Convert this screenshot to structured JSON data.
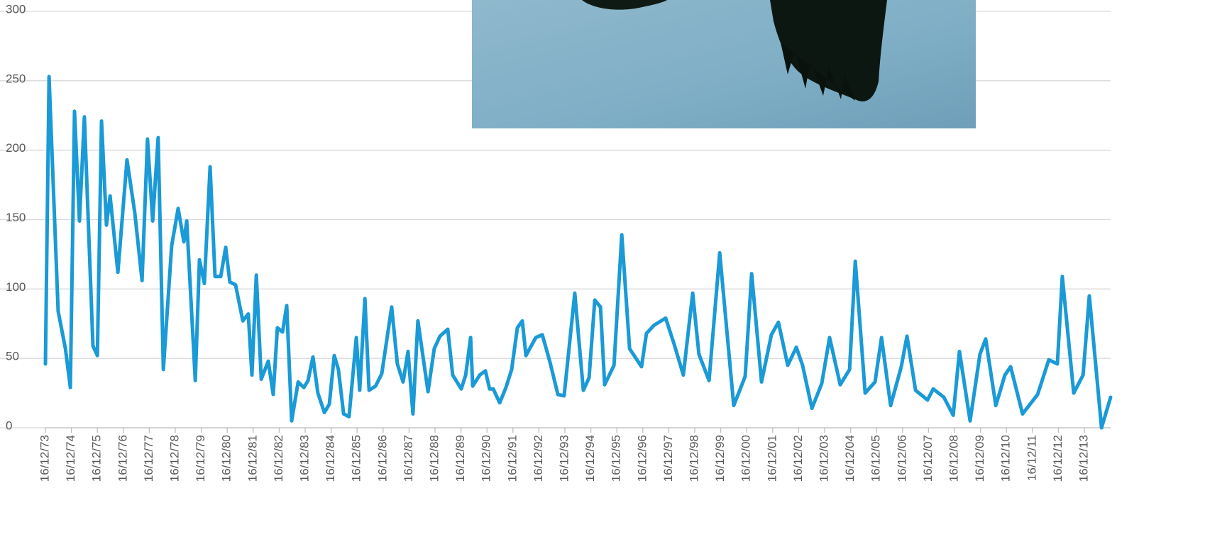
{
  "chart_data": {
    "type": "line",
    "x": [
      1973.96,
      1974.1,
      1974.45,
      1974.73,
      1974.92,
      1975.08,
      1975.27,
      1975.46,
      1975.79,
      1975.96,
      1976.12,
      1976.31,
      1976.45,
      1976.75,
      1977.1,
      1977.4,
      1977.68,
      1977.89,
      1978.09,
      1978.3,
      1978.5,
      1978.82,
      1979.07,
      1979.29,
      1979.4,
      1979.73,
      1979.89,
      1980.08,
      1980.3,
      1980.49,
      1980.71,
      1980.9,
      1981.06,
      1981.28,
      1981.56,
      1981.77,
      1981.91,
      1982.08,
      1982.27,
      1982.54,
      1982.73,
      1982.89,
      1983.09,
      1983.25,
      1983.44,
      1983.69,
      1983.91,
      1984.07,
      1984.26,
      1984.45,
      1984.7,
      1984.89,
      1985.08,
      1985.24,
      1985.44,
      1985.65,
      1985.93,
      1986.06,
      1986.26,
      1986.42,
      1986.67,
      1986.91,
      1987.29,
      1987.51,
      1987.73,
      1987.92,
      1988.11,
      1988.3,
      1988.69,
      1988.93,
      1989.15,
      1989.45,
      1989.64,
      1989.97,
      1990.14,
      1990.33,
      1990.41,
      1990.68,
      1990.9,
      1991.06,
      1991.2,
      1991.45,
      1991.69,
      1991.91,
      1992.13,
      1992.32,
      1992.46,
      1992.84,
      1993.09,
      1993.39,
      1993.69,
      1993.93,
      1994.34,
      1994.67,
      1994.89,
      1995.11,
      1995.33,
      1995.49,
      1995.85,
      1996.15,
      1996.45,
      1996.91,
      1997.1,
      1997.4,
      1997.84,
      1998.17,
      1998.52,
      1998.88,
      1999.12,
      1999.51,
      1999.92,
      2000.46,
      2000.9,
      2001.15,
      2001.53,
      2001.91,
      2002.18,
      2002.54,
      2002.87,
      2003.11,
      2003.47,
      2003.85,
      2004.15,
      2004.56,
      2004.92,
      2005.14,
      2005.52,
      2005.9,
      2006.15,
      2006.5,
      2006.91,
      2007.13,
      2007.46,
      2007.92,
      2008.14,
      2008.55,
      2008.91,
      2009.15,
      2009.56,
      2009.94,
      2010.16,
      2010.55,
      2010.9,
      2011.12,
      2011.58,
      2012.16,
      2012.59,
      2012.92,
      2013.11,
      2013.55,
      2013.91,
      2014.15,
      2014.62,
      2014.97
    ],
    "values": [
      46,
      253,
      84,
      57,
      29,
      228,
      149,
      224,
      59,
      52,
      221,
      146,
      167,
      112,
      193,
      155,
      106,
      208,
      149,
      209,
      42,
      131,
      158,
      134,
      149,
      34,
      121,
      104,
      188,
      109,
      109,
      130,
      105,
      103,
      77,
      82,
      38,
      110,
      35,
      48,
      24,
      72,
      69,
      88,
      5,
      33,
      29,
      34,
      51,
      25,
      11,
      17,
      52,
      42,
      10,
      8,
      65,
      27,
      93,
      27,
      30,
      39,
      87,
      46,
      33,
      55,
      10,
      77,
      26,
      57,
      66,
      71,
      38,
      28,
      38,
      65,
      30,
      38,
      41,
      28,
      28,
      18,
      29,
      42,
      72,
      77,
      52,
      65,
      67,
      47,
      24,
      23,
      97,
      27,
      36,
      92,
      87,
      31,
      45,
      139,
      57,
      44,
      68,
      74,
      79,
      60,
      38,
      97,
      53,
      34,
      126,
      16,
      37,
      111,
      33,
      67,
      76,
      45,
      58,
      45,
      14,
      32,
      65,
      31,
      42,
      120,
      25,
      33,
      65,
      16,
      44,
      66,
      27,
      20,
      28,
      22,
      9,
      55,
      5,
      53,
      64,
      16,
      38,
      44,
      10,
      24,
      49,
      46,
      109,
      25,
      38,
      95,
      0,
      22
    ],
    "color": "#1a9ad6",
    "xlim": [
      1973.96,
      2014.97
    ],
    "xticks": [
      {
        "value": 1973.96,
        "label": "16/12/73"
      },
      {
        "value": 1974.96,
        "label": "16/12/74"
      },
      {
        "value": 1975.96,
        "label": "16/12/75"
      },
      {
        "value": 1976.96,
        "label": "16/12/76"
      },
      {
        "value": 1977.96,
        "label": "16/12/77"
      },
      {
        "value": 1978.96,
        "label": "16/12/78"
      },
      {
        "value": 1979.96,
        "label": "16/12/79"
      },
      {
        "value": 1980.96,
        "label": "16/12/80"
      },
      {
        "value": 1981.96,
        "label": "16/12/81"
      },
      {
        "value": 1982.96,
        "label": "16/12/82"
      },
      {
        "value": 1983.96,
        "label": "16/12/83"
      },
      {
        "value": 1984.96,
        "label": "16/12/84"
      },
      {
        "value": 1985.96,
        "label": "16/12/85"
      },
      {
        "value": 1986.96,
        "label": "16/12/86"
      },
      {
        "value": 1987.96,
        "label": "16/12/87"
      },
      {
        "value": 1988.96,
        "label": "16/12/88"
      },
      {
        "value": 1989.96,
        "label": "16/12/89"
      },
      {
        "value": 1990.96,
        "label": "16/12/90"
      },
      {
        "value": 1991.96,
        "label": "16/12/91"
      },
      {
        "value": 1992.96,
        "label": "16/12/92"
      },
      {
        "value": 1993.96,
        "label": "16/12/93"
      },
      {
        "value": 1994.96,
        "label": "16/12/94"
      },
      {
        "value": 1995.96,
        "label": "16/12/95"
      },
      {
        "value": 1996.96,
        "label": "16/12/96"
      },
      {
        "value": 1997.96,
        "label": "16/12/97"
      },
      {
        "value": 1998.96,
        "label": "16/12/98"
      },
      {
        "value": 1999.96,
        "label": "16/12/99"
      },
      {
        "value": 2000.96,
        "label": "16/12/00"
      },
      {
        "value": 2001.96,
        "label": "16/12/01"
      },
      {
        "value": 2002.96,
        "label": "16/12/02"
      },
      {
        "value": 2003.96,
        "label": "16/12/03"
      },
      {
        "value": 2004.96,
        "label": "16/12/04"
      },
      {
        "value": 2005.96,
        "label": "16/12/05"
      },
      {
        "value": 2006.96,
        "label": "16/12/06"
      },
      {
        "value": 2007.96,
        "label": "16/12/07"
      },
      {
        "value": 2008.96,
        "label": "16/12/08"
      },
      {
        "value": 2009.96,
        "label": "16/12/09"
      },
      {
        "value": 2010.96,
        "label": "16/12/10"
      },
      {
        "value": 2011.96,
        "label": "16/12/11"
      },
      {
        "value": 2012.96,
        "label": "16/12/12"
      },
      {
        "value": 2013.96,
        "label": "16/12/13"
      }
    ],
    "ylim": [
      0,
      300
    ],
    "yticks": [
      0,
      50,
      100,
      150,
      200,
      250,
      300
    ],
    "grid": true
  }
}
